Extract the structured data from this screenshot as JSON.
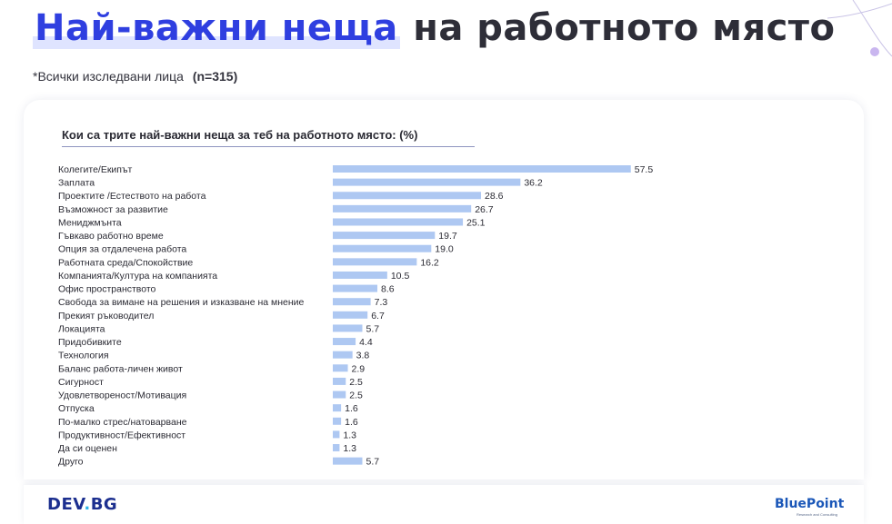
{
  "slide": {
    "title_highlight": "Най-важни неща",
    "title_rest": "на работното място",
    "subtitle": "*Всички изследвани лица",
    "sample": "(n=315)"
  },
  "chart_data": {
    "type": "bar",
    "orientation": "horizontal",
    "title": "Кои са трите най-важни неща за теб на работното място: (%)",
    "categories": [
      "Колегите/Екипът",
      "Заплата",
      "Проектите /Естеството на работа",
      "Възможност за развитие",
      "Мениджмънта",
      "Гъвкаво работно време",
      "Опция за отдалечена работа",
      "Работната среда/Спокойствие",
      "Компанията/Култура на компанията",
      "Офис пространството",
      "Свобода за вимане на решения и изказване на мнение",
      "Прекият ръководител",
      "Локацията",
      "Придобивките",
      "Технология",
      "Баланс работа-личен живот",
      "Сигурност",
      "Удовлетвореност/Мотивация",
      "Отпуска",
      "По-малко стрес/натоварване",
      "Продуктивност/Ефективност",
      "Да си оценен",
      "Друго"
    ],
    "values": [
      57.5,
      36.2,
      28.6,
      26.7,
      25.1,
      19.7,
      19.0,
      16.2,
      10.5,
      8.6,
      7.3,
      6.7,
      5.7,
      4.4,
      3.8,
      2.9,
      2.5,
      2.5,
      1.6,
      1.6,
      1.3,
      1.3,
      5.7
    ],
    "value_labels": [
      "57.5",
      "36.2",
      "28.6",
      "26.7",
      "25.1",
      "19.7",
      "19.0",
      "16.2",
      "10.5",
      "8.6",
      "7.3",
      "6.7",
      "5.7",
      "4.4",
      "3.8",
      "2.9",
      "2.5",
      "2.5",
      "1.6",
      "1.6",
      "1.3",
      "1.3",
      "5.7"
    ],
    "xlim": [
      0,
      60
    ],
    "bar_color": "#aec8f2",
    "grid": false,
    "legend": "none"
  },
  "footer": {
    "logo_left_a": "DEV",
    "logo_left_dot": ".",
    "logo_left_b": "BG",
    "logo_right": "BluePoint",
    "logo_right_sub": "Research and Consulting"
  },
  "colors": {
    "title_accent": "#2f3fe0",
    "title_dark": "#2e2e38",
    "card_bg": "#ffffff"
  }
}
